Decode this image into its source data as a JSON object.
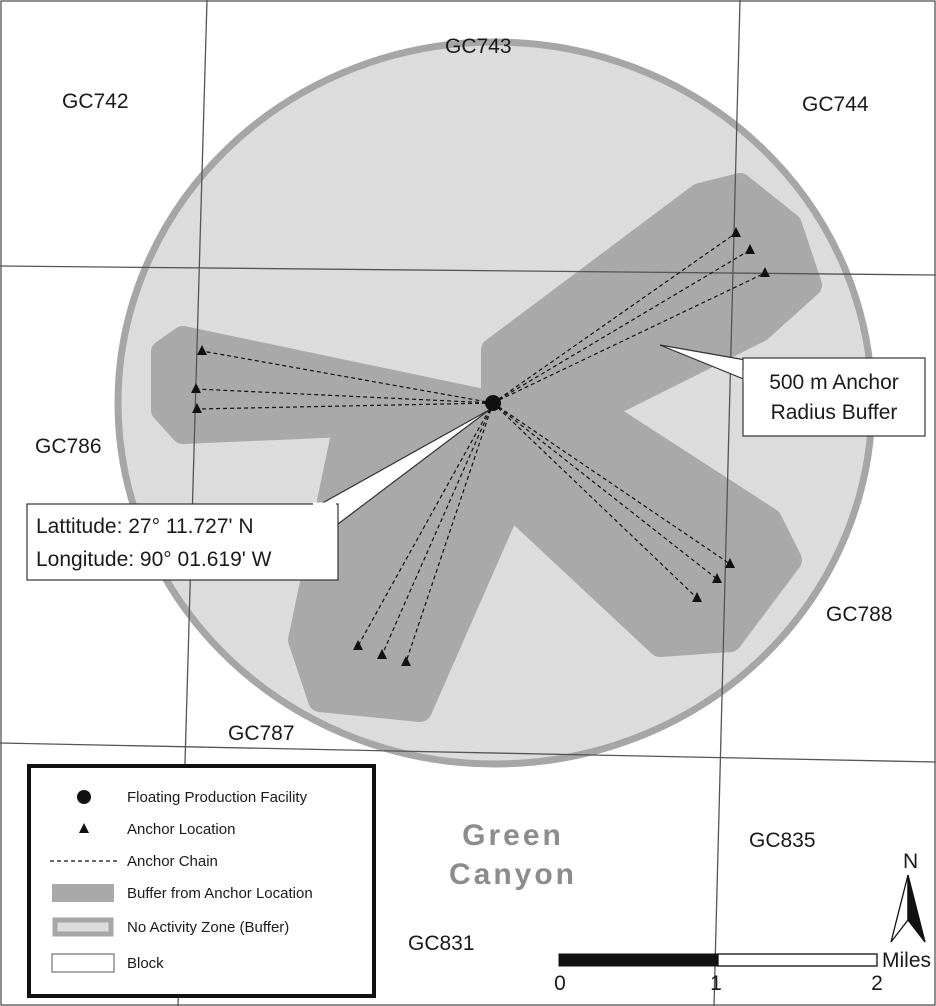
{
  "blocks": {
    "gc742": "GC742",
    "gc743": "GC743",
    "gc744": "GC744",
    "gc786": "GC786",
    "gc788": "GC788",
    "gc787": "GC787",
    "gc835": "GC835",
    "gc831": "GC831"
  },
  "area": {
    "line1": "Green",
    "line2": "Canyon"
  },
  "callouts": {
    "buffer_line1": "500 m Anchor",
    "buffer_line2": "Radius Buffer",
    "lat": "Lattitude:  27° 11.727' N",
    "lon": "Longitude:  90° 01.619' W"
  },
  "legend": {
    "facility": "Floating Production Facility",
    "anchor": "Anchor Location",
    "chain": "Anchor Chain",
    "buffer": "Buffer from Anchor Location",
    "zone": "No Activity Zone (Buffer)",
    "block": "Block"
  },
  "scale": {
    "t0": "0",
    "t1": "1",
    "t2": "2",
    "unit": "Miles"
  },
  "north": "N",
  "colors": {
    "zone_fill": "#dcdcdc",
    "zone_ring": "#a6a6a6",
    "buffer_fill": "#a9a9a9",
    "grid": "#555555",
    "ink": "#111111"
  }
}
